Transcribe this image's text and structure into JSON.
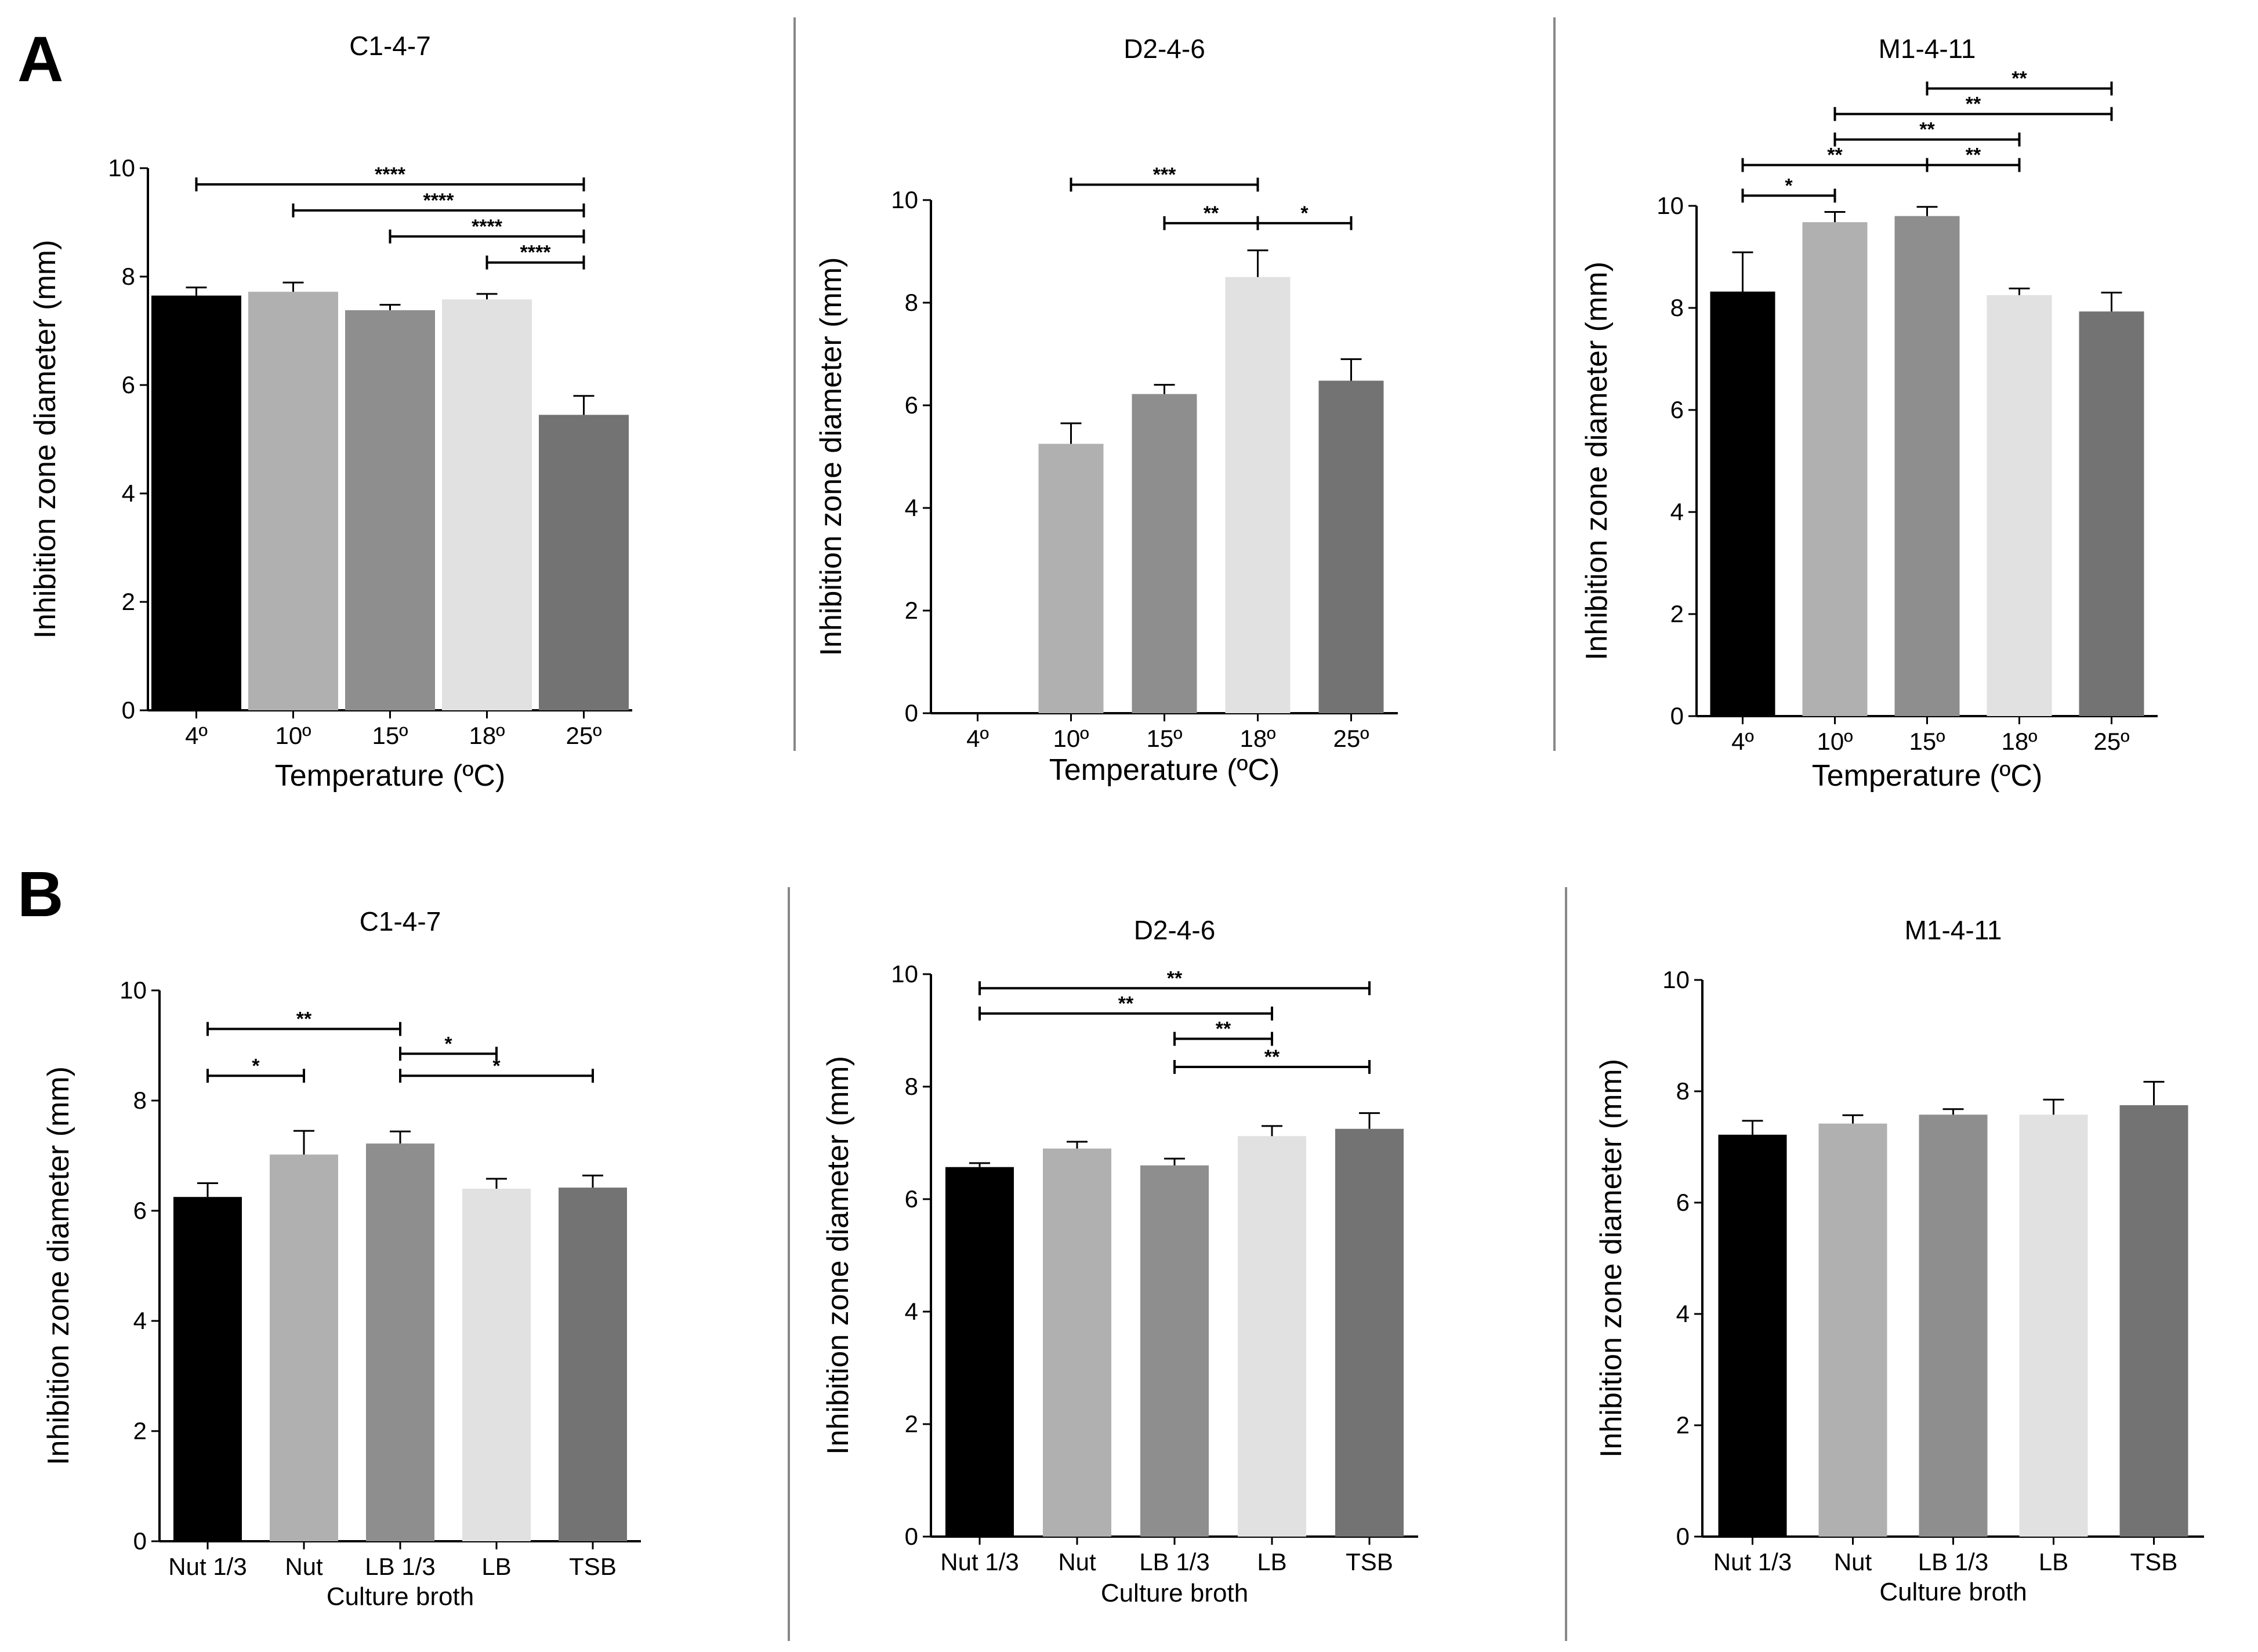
{
  "panels": [
    {
      "letter": "A"
    },
    {
      "letter": "B"
    }
  ],
  "colors": {
    "bars": [
      "#000000",
      "#b0b0b0",
      "#8e8e8e",
      "#e1e1e1",
      "#737373"
    ],
    "axis": "#000000",
    "divider": "#888888"
  },
  "chart_data": [
    {
      "type": "bar",
      "panel": "A",
      "title": "C1-4-7",
      "categories": [
        "4º",
        "10º",
        "15º",
        "18º",
        "25º"
      ],
      "values": [
        7.65,
        7.72,
        7.38,
        7.58,
        5.45
      ],
      "errors": [
        0.15,
        0.17,
        0.1,
        0.1,
        0.35
      ],
      "xlabel": "Temperature (ºC)",
      "ylabel": "Inhibition zone diameter (mm)",
      "ylim": [
        0,
        10
      ],
      "yticks": [
        0,
        2,
        4,
        6,
        8,
        10
      ],
      "significance": [
        {
          "from": 0,
          "to": 4,
          "label": "****",
          "y": 9.7
        },
        {
          "from": 1,
          "to": 4,
          "label": "****",
          "y": 9.22
        },
        {
          "from": 2,
          "to": 4,
          "label": "****",
          "y": 8.74
        },
        {
          "from": 3,
          "to": 4,
          "label": "****",
          "y": 8.26
        }
      ]
    },
    {
      "type": "bar",
      "panel": "A",
      "title": "D2-4-6",
      "categories": [
        "4º",
        "10º",
        "15º",
        "18º",
        "25º"
      ],
      "values": [
        null,
        5.25,
        6.22,
        8.5,
        6.48
      ],
      "errors": [
        null,
        0.4,
        0.18,
        0.52,
        0.42
      ],
      "xlabel": "Temperature (ºC)",
      "ylabel": "Inhibition zone diameter (mm)",
      "ylim": [
        0,
        10
      ],
      "yticks": [
        0,
        2,
        4,
        6,
        8,
        10
      ],
      "significance": [
        {
          "from": 1,
          "to": 3,
          "label": "***",
          "y": 10.3
        },
        {
          "from": 2,
          "to": 3,
          "label": "**",
          "y": 9.55
        },
        {
          "from": 3,
          "to": 4,
          "label": "*",
          "y": 9.55
        }
      ]
    },
    {
      "type": "bar",
      "panel": "A",
      "title": "M1-4-11",
      "categories": [
        "4º",
        "10º",
        "15º",
        "18º",
        "25º"
      ],
      "values": [
        8.32,
        9.68,
        9.8,
        8.25,
        7.93
      ],
      "errors": [
        0.77,
        0.2,
        0.18,
        0.13,
        0.37
      ],
      "xlabel": "Temperature (ºC)",
      "ylabel": "Inhibition zone diameter (mm)",
      "ylim": [
        0,
        10
      ],
      "yticks": [
        0,
        2,
        4,
        6,
        8,
        10
      ],
      "significance": [
        {
          "from": 2,
          "to": 4,
          "label": "**",
          "y": 12.3
        },
        {
          "from": 1,
          "to": 4,
          "label": "**",
          "y": 11.8
        },
        {
          "from": 1,
          "to": 3,
          "label": "**",
          "y": 11.3
        },
        {
          "from": 0,
          "to": 2,
          "label": "**",
          "y": 10.8
        },
        {
          "from": 2,
          "to": 3,
          "label": "**",
          "y": 10.8
        },
        {
          "from": 0,
          "to": 1,
          "label": "*",
          "y": 10.2
        }
      ]
    },
    {
      "type": "bar",
      "panel": "B",
      "title": "C1-4-7",
      "categories": [
        "Nut 1/3",
        "Nut",
        "LB 1/3",
        "LB",
        "TSB"
      ],
      "values": [
        6.25,
        7.02,
        7.22,
        6.4,
        6.42
      ],
      "errors": [
        0.25,
        0.43,
        0.22,
        0.18,
        0.22
      ],
      "xlabel": "Culture broth",
      "ylabel": "Inhibition zone diameter (mm)",
      "ylim": [
        0,
        10
      ],
      "yticks": [
        0,
        2,
        4,
        6,
        8,
        10
      ],
      "significance": [
        {
          "from": 0,
          "to": 2,
          "label": "**",
          "y": 9.3
        },
        {
          "from": 2,
          "to": 3,
          "label": "*",
          "y": 8.85
        },
        {
          "from": 0,
          "to": 1,
          "label": "*",
          "y": 8.45
        },
        {
          "from": 2,
          "to": 4,
          "label": "*",
          "y": 8.45
        }
      ]
    },
    {
      "type": "bar",
      "panel": "B",
      "title": "D2-4-6",
      "categories": [
        "Nut 1/3",
        "Nut",
        "LB 1/3",
        "LB",
        "TSB"
      ],
      "values": [
        6.57,
        6.9,
        6.6,
        7.12,
        7.25
      ],
      "errors": [
        0.07,
        0.12,
        0.12,
        0.18,
        0.28
      ],
      "xlabel": "Culture broth",
      "ylabel": "Inhibition zone diameter (mm)",
      "ylim": [
        0,
        10
      ],
      "yticks": [
        0,
        2,
        4,
        6,
        8,
        10
      ],
      "significance": [
        {
          "from": 0,
          "to": 4,
          "label": "**",
          "y": 9.75
        },
        {
          "from": 0,
          "to": 3,
          "label": "**",
          "y": 9.3
        },
        {
          "from": 2,
          "to": 3,
          "label": "**",
          "y": 8.85
        },
        {
          "from": 2,
          "to": 4,
          "label": "**",
          "y": 8.35
        }
      ]
    },
    {
      "type": "bar",
      "panel": "B",
      "title": "M1-4-11",
      "categories": [
        "Nut 1/3",
        "Nut",
        "LB 1/3",
        "LB",
        "TSB"
      ],
      "values": [
        7.22,
        7.42,
        7.58,
        7.58,
        7.75
      ],
      "errors": [
        0.25,
        0.15,
        0.1,
        0.27,
        0.42
      ],
      "xlabel": "Culture broth",
      "ylabel": "Inhibition zone diameter (mm)",
      "ylim": [
        0,
        10
      ],
      "yticks": [
        0,
        2,
        4,
        6,
        8,
        10
      ],
      "significance": []
    }
  ]
}
